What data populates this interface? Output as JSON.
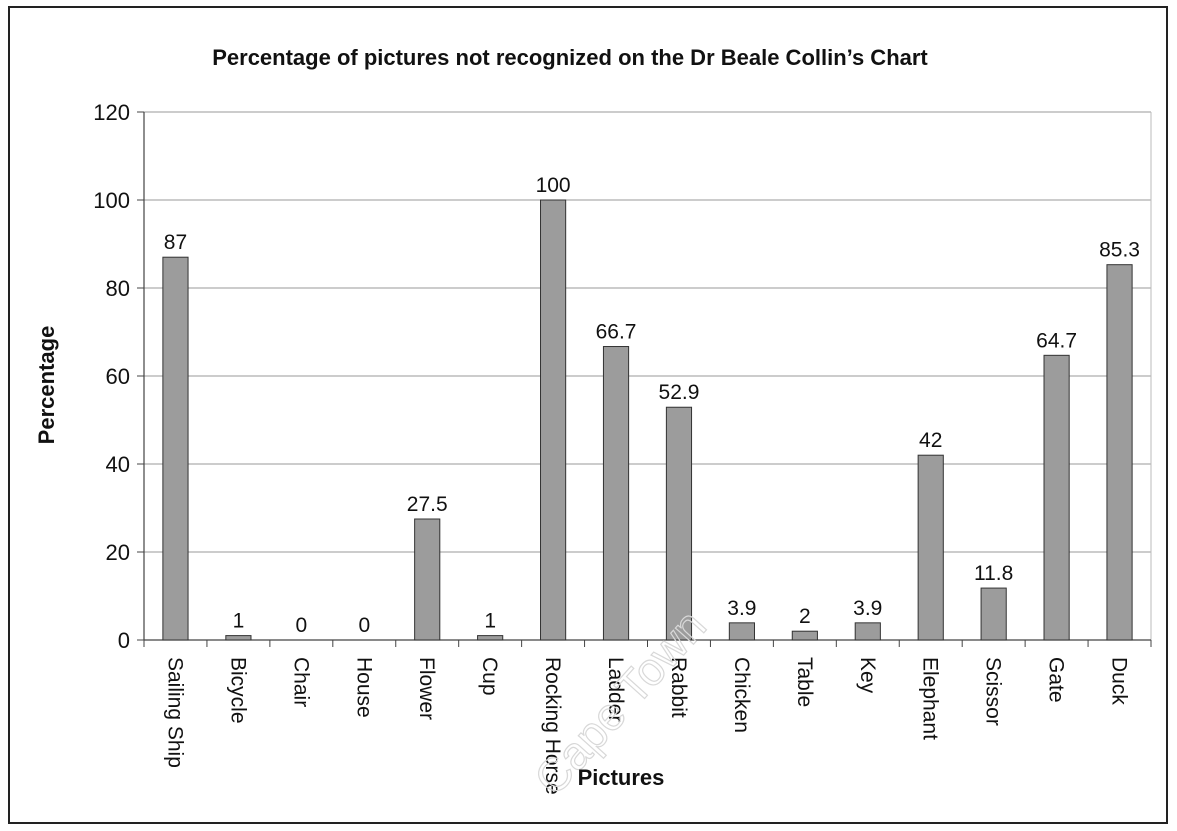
{
  "chart_data": {
    "type": "bar",
    "title": "Percentage of pictures not recognized on the Dr Beale Collin’s Chart",
    "xlabel": "Pictures",
    "ylabel": "Percentage",
    "ylim": [
      0,
      120
    ],
    "yticks": [
      0,
      20,
      40,
      60,
      80,
      100,
      120
    ],
    "grid": true,
    "legend": "none",
    "categories": [
      "Sailing Ship",
      "Bicycle",
      "Chair",
      "House",
      "Flower",
      "Cup",
      "Rocking Horse",
      "Ladder",
      "Rabbit",
      "Chicken",
      "Table",
      "Key",
      "Elephant",
      "Scissor",
      "Gate",
      "Duck"
    ],
    "values": [
      87,
      1,
      0,
      0,
      27.5,
      1,
      100,
      66.7,
      52.9,
      3.9,
      2,
      3.9,
      42,
      11.8,
      64.7,
      85.3
    ],
    "value_labels": [
      "87",
      "1",
      "0",
      "0",
      "27.5",
      "1",
      "100",
      "66.7",
      "52.9",
      "3.9",
      "2",
      "3.9",
      "42",
      "11.8",
      "64.7",
      "85.3"
    ],
    "bar_color": "#9c9c9c",
    "bar_edge_color": "#333333",
    "grid_color": "#9a9a9a"
  },
  "watermark": {
    "text": "Cape Town"
  }
}
